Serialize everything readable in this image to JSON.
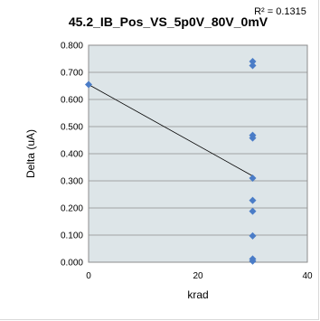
{
  "chart_data": {
    "type": "scatter",
    "title": "45.2_IB_Pos_VS_5p0V_80V_0mV",
    "xlabel": "krad",
    "ylabel": "Delta (uA)",
    "xlim": [
      0,
      40
    ],
    "ylim": [
      0,
      0.8
    ],
    "x_ticks": [
      "0",
      "20",
      "40"
    ],
    "y_ticks": [
      "0.000",
      "0.100",
      "0.200",
      "0.300",
      "0.400",
      "0.500",
      "0.600",
      "0.700",
      "0.800"
    ],
    "grid": "horizontal",
    "plot_background": "#dde5e8",
    "marker_color": "#4a7cc7",
    "trendline_color": "#000000",
    "r_squared_label": "R² = 0.1315",
    "series": [
      {
        "points": [
          [
            0,
            0.655
          ],
          [
            30,
            0.74
          ],
          [
            30,
            0.725
          ],
          [
            30,
            0.468
          ],
          [
            30,
            0.458
          ],
          [
            30,
            0.31
          ],
          [
            30,
            0.228
          ],
          [
            30,
            0.188
          ],
          [
            30,
            0.097
          ],
          [
            30,
            0.012
          ],
          [
            30,
            0.004
          ]
        ]
      }
    ],
    "trendline": {
      "x": [
        0,
        30
      ],
      "y": [
        0.655,
        0.318
      ]
    }
  }
}
